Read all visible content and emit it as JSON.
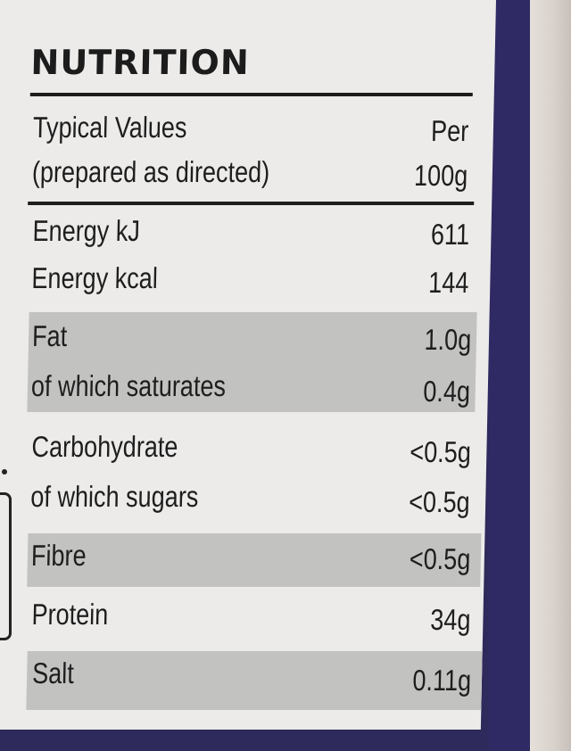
{
  "label": {
    "title": "NUTRITION",
    "header": {
      "col1_line1": "Typical Values",
      "col1_line2": "(prepared as directed)",
      "col2_line1": "Per",
      "col2_line2": "100g"
    },
    "rows": [
      {
        "name": "Energy kJ",
        "value": "611"
      },
      {
        "name": "Energy kcal",
        "value": "144"
      },
      {
        "name": "Fat",
        "value": "1.0g"
      },
      {
        "name": "of which saturates",
        "value": "0.4g"
      },
      {
        "name": "Carbohydrate",
        "value": "<0.5g"
      },
      {
        "name": "of which sugars",
        "value": "<0.5g"
      },
      {
        "name": "Fibre",
        "value": "<0.5g"
      },
      {
        "name": "Protein",
        "value": "34g"
      },
      {
        "name": "Salt",
        "value": "0.11g"
      }
    ]
  },
  "colors": {
    "card": "#ecebea",
    "shade": "#c2c2c1",
    "border": "#2f2a63",
    "text": "#1e1e1e"
  }
}
